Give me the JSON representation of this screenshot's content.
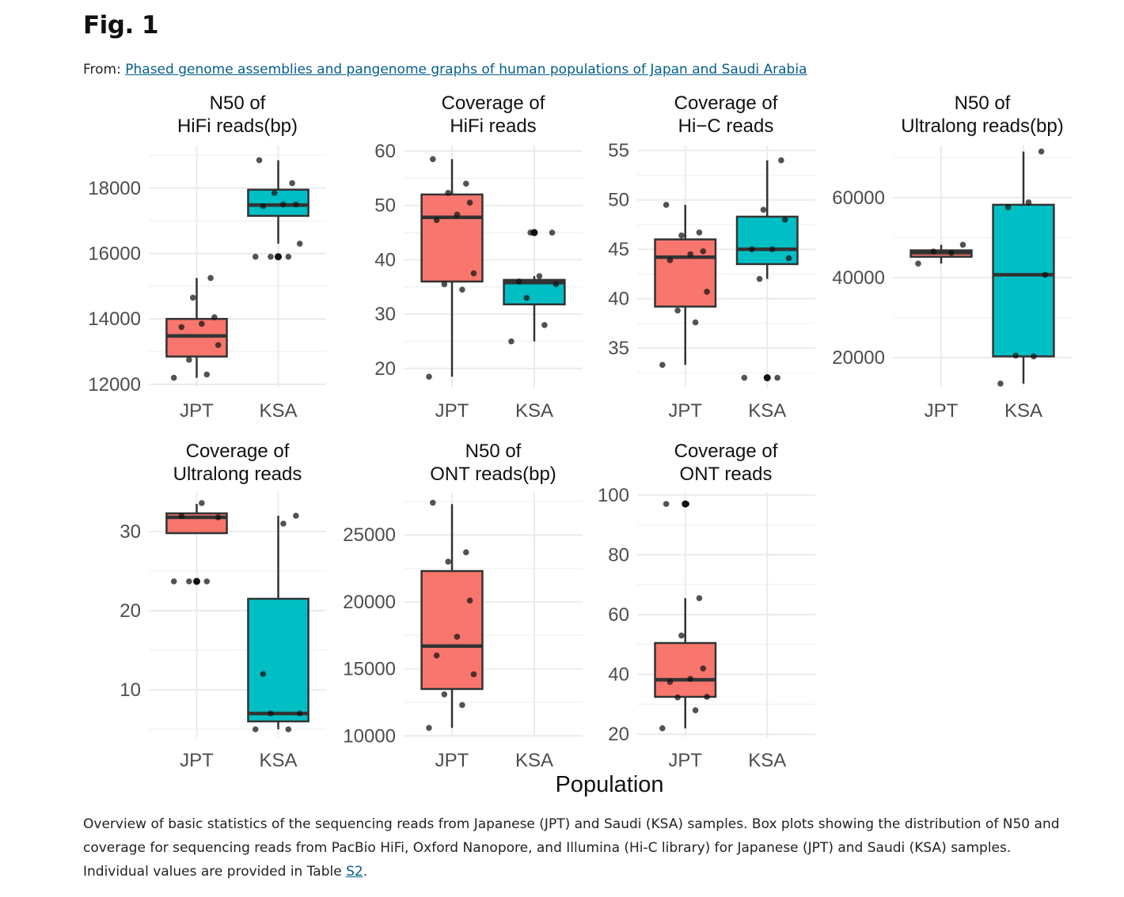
{
  "figure": {
    "title": "Fig. 1",
    "from_label": "From: ",
    "from_link": "Phased genome assemblies and pangenome graphs of human populations of Japan and Saudi Arabia"
  },
  "caption": {
    "text": "Overview of basic statistics of the sequencing reads from Japanese (JPT) and Saudi (KSA) samples. Box plots showing the distribution of N50 and coverage for sequencing reads from PacBio HiFi, Oxford Nanopore, and Illumina (Hi-C library) for Japanese (JPT) and Saudi (KSA) samples. Individual values are provided in Table ",
    "link": "S2",
    "end": "."
  },
  "colors": {
    "JPT": "#F8766D",
    "KSA": "#00BFC4",
    "grid": "#ebebeb",
    "box_line": "#333333",
    "point": "#111111"
  },
  "x_title": "Population",
  "chart_data": [
    {
      "type": "box",
      "title": [
        "N50 of",
        "HiFi reads(bp)"
      ],
      "categories": [
        "JPT",
        "KSA"
      ],
      "ylim": [
        11900,
        19300
      ],
      "yticks": [
        12000,
        14000,
        16000,
        18000
      ],
      "yticklabels": [
        "12000",
        "14000",
        "16000",
        "18000"
      ],
      "boxes": [
        {
          "group": "JPT",
          "whisker_low": 12200,
          "q1": 12850,
          "median": 13480,
          "q3": 14000,
          "whisker_high": 15250,
          "outliers": [],
          "points": [
            12200,
            12300,
            12750,
            13200,
            13750,
            13850,
            14050,
            14650,
            15250
          ]
        },
        {
          "group": "KSA",
          "whisker_low": 16300,
          "q1": 17150,
          "median": 17480,
          "q3": 17950,
          "whisker_high": 18850,
          "outliers": [
            15900
          ],
          "points": [
            15900,
            15900,
            15900,
            16300,
            17450,
            17500,
            17500,
            17850,
            18150,
            18850
          ]
        }
      ]
    },
    {
      "type": "box",
      "title": [
        "Coverage of",
        "HiFi reads"
      ],
      "categories": [
        "JPT",
        "KSA"
      ],
      "ylim": [
        16.5,
        61
      ],
      "yticks": [
        20,
        30,
        40,
        50,
        60
      ],
      "yticklabels": [
        "20",
        "30",
        "40",
        "50",
        "60"
      ],
      "boxes": [
        {
          "group": "JPT",
          "whisker_low": 18.5,
          "q1": 36,
          "median": 47.8,
          "q3": 52,
          "whisker_high": 58.5,
          "outliers": [],
          "points": [
            18.5,
            34.5,
            35.5,
            37.5,
            47.3,
            48.3,
            50.5,
            52.3,
            54,
            58.5
          ]
        },
        {
          "group": "KSA",
          "whisker_low": 25,
          "q1": 31.8,
          "median": 35.8,
          "q3": 36.3,
          "whisker_high": 37,
          "outliers": [
            45
          ],
          "points": [
            25,
            28,
            33,
            35.5,
            36,
            37,
            45,
            45
          ]
        }
      ]
    },
    {
      "type": "box",
      "title": [
        "Coverage of",
        "Hi−C reads"
      ],
      "categories": [
        "JPT",
        "KSA"
      ],
      "ylim": [
        31,
        55.5
      ],
      "yticks": [
        35,
        40,
        45,
        50,
        55
      ],
      "yticklabels": [
        "35",
        "40",
        "45",
        "50",
        "55"
      ],
      "boxes": [
        {
          "group": "JPT",
          "whisker_low": 33.3,
          "q1": 39.2,
          "median": 44.2,
          "q3": 46,
          "whisker_high": 49.5,
          "outliers": [],
          "points": [
            33.3,
            37.6,
            38.8,
            40.7,
            43.9,
            44.5,
            44.8,
            46.4,
            46.7,
            49.5
          ]
        },
        {
          "group": "KSA",
          "whisker_low": 42,
          "q1": 43.5,
          "median": 45,
          "q3": 48.3,
          "whisker_high": 54,
          "outliers": [
            32
          ],
          "points": [
            32,
            32,
            42,
            44.1,
            45,
            45,
            48,
            49,
            54
          ]
        }
      ]
    },
    {
      "type": "box",
      "title": [
        "N50 of",
        "Ultralong reads(bp)"
      ],
      "categories": [
        "JPT",
        "KSA"
      ],
      "ylim": [
        12500,
        73000
      ],
      "yticks": [
        20000,
        40000,
        60000
      ],
      "yticklabels": [
        "20000",
        "40000",
        "60000"
      ],
      "boxes": [
        {
          "group": "JPT",
          "whisker_low": 43500,
          "q1": 45200,
          "median": 46200,
          "q3": 46800,
          "whisker_high": 48200,
          "outliers": [],
          "points": [
            43500,
            46200,
            46500,
            48200
          ]
        },
        {
          "group": "KSA",
          "whisker_low": 13500,
          "q1": 20300,
          "median": 40700,
          "q3": 58200,
          "whisker_high": 71500,
          "outliers": [],
          "points": [
            13500,
            20300,
            20500,
            40700,
            57600,
            58800,
            71500
          ]
        }
      ]
    },
    {
      "type": "box",
      "title": [
        "Coverage of",
        "Ultralong reads"
      ],
      "categories": [
        "JPT",
        "KSA"
      ],
      "ylim": [
        4,
        35
      ],
      "yticks": [
        10,
        20,
        30
      ],
      "yticklabels": [
        "10",
        "20",
        "30"
      ],
      "boxes": [
        {
          "group": "JPT",
          "whisker_low": 29.8,
          "q1": 29.8,
          "median": 31.8,
          "q3": 32.3,
          "whisker_high": 33.5,
          "outliers": [
            23.7
          ],
          "points": [
            23.7,
            23.7,
            23.7,
            31.8,
            32,
            33.6
          ]
        },
        {
          "group": "KSA",
          "whisker_low": 5,
          "q1": 6,
          "median": 7,
          "q3": 21.5,
          "whisker_high": 32,
          "outliers": [],
          "points": [
            5,
            5,
            7,
            7,
            12,
            31,
            32
          ]
        }
      ]
    },
    {
      "type": "box",
      "title": [
        "N50 of",
        "ONT reads(bp)"
      ],
      "categories": [
        "JPT",
        "KSA"
      ],
      "ylim": [
        9900,
        28200
      ],
      "yticks": [
        10000,
        15000,
        20000,
        25000
      ],
      "yticklabels": [
        "10000",
        "15000",
        "20000",
        "25000"
      ],
      "boxes": [
        {
          "group": "JPT",
          "whisker_low": 10600,
          "q1": 13500,
          "median": 16700,
          "q3": 22300,
          "whisker_high": 27300,
          "outliers": [],
          "points": [
            10600,
            12300,
            13100,
            14600,
            16000,
            17400,
            20100,
            23000,
            23700,
            27400
          ]
        }
      ]
    },
    {
      "type": "box",
      "title": [
        "Coverage of",
        "ONT reads"
      ],
      "categories": [
        "JPT",
        "KSA"
      ],
      "ylim": [
        19,
        101
      ],
      "yticks": [
        20,
        40,
        60,
        80,
        100
      ],
      "yticklabels": [
        "20",
        "40",
        "60",
        "80",
        "100"
      ],
      "boxes": [
        {
          "group": "JPT",
          "whisker_low": 22,
          "q1": 32.5,
          "median": 38.2,
          "q3": 50.5,
          "whisker_high": 65.5,
          "outliers": [
            97
          ],
          "points": [
            22,
            28,
            32.3,
            32.5,
            37.5,
            38.5,
            42,
            53,
            65.5,
            97,
            97
          ]
        }
      ]
    }
  ]
}
